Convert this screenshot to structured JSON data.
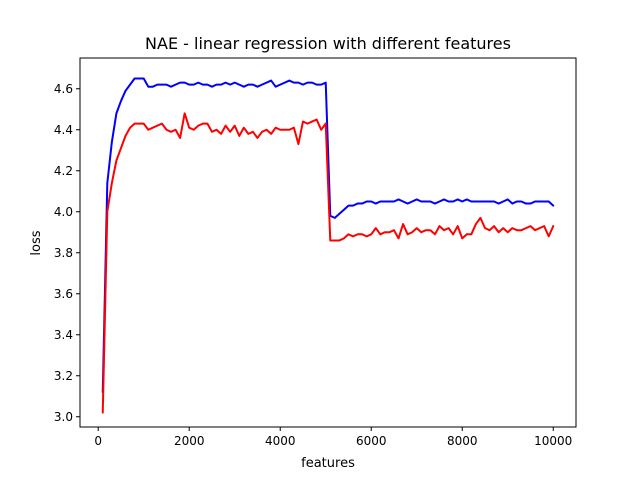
{
  "chart_data": {
    "type": "line",
    "title": "NAE - linear regression with different features",
    "xlabel": "features",
    "ylabel": "loss",
    "xlim": [
      -400,
      10500
    ],
    "ylim": [
      2.95,
      4.75
    ],
    "xticks": [
      0,
      2000,
      4000,
      6000,
      8000,
      10000
    ],
    "yticks": [
      3.0,
      3.2,
      3.4,
      3.6,
      3.8,
      4.0,
      4.2,
      4.4,
      4.6
    ],
    "xtick_labels": [
      "0",
      "2000",
      "4000",
      "6000",
      "8000",
      "10000"
    ],
    "ytick_labels": [
      "3.0",
      "3.2",
      "3.4",
      "3.6",
      "3.8",
      "4.0",
      "4.2",
      "4.4",
      "4.6"
    ],
    "grid": false,
    "x": [
      100,
      200,
      300,
      400,
      500,
      600,
      700,
      800,
      900,
      1000,
      1100,
      1200,
      1300,
      1400,
      1500,
      1600,
      1700,
      1800,
      1900,
      2000,
      2100,
      2200,
      2300,
      2400,
      2500,
      2600,
      2700,
      2800,
      2900,
      3000,
      3100,
      3200,
      3300,
      3400,
      3500,
      3600,
      3700,
      3800,
      3900,
      4000,
      4100,
      4200,
      4300,
      4400,
      4500,
      4600,
      4700,
      4800,
      4900,
      5000,
      5100,
      5200,
      5300,
      5400,
      5500,
      5600,
      5700,
      5800,
      5900,
      6000,
      6100,
      6200,
      6300,
      6400,
      6500,
      6600,
      6700,
      6800,
      6900,
      7000,
      7100,
      7200,
      7300,
      7400,
      7500,
      7600,
      7700,
      7800,
      7900,
      8000,
      8100,
      8200,
      8300,
      8400,
      8500,
      8600,
      8700,
      8800,
      8900,
      9000,
      9100,
      9200,
      9300,
      9400,
      9500,
      9600,
      9700,
      9800,
      9900,
      10000
    ],
    "series": [
      {
        "color": "#0000ff",
        "values": [
          3.12,
          4.14,
          4.34,
          4.48,
          4.54,
          4.59,
          4.62,
          4.65,
          4.65,
          4.65,
          4.61,
          4.61,
          4.62,
          4.62,
          4.62,
          4.61,
          4.62,
          4.63,
          4.63,
          4.62,
          4.62,
          4.63,
          4.62,
          4.62,
          4.61,
          4.62,
          4.62,
          4.63,
          4.62,
          4.63,
          4.62,
          4.61,
          4.62,
          4.62,
          4.61,
          4.62,
          4.63,
          4.64,
          4.61,
          4.62,
          4.63,
          4.64,
          4.63,
          4.63,
          4.62,
          4.63,
          4.63,
          4.62,
          4.62,
          4.63,
          3.98,
          3.97,
          3.99,
          4.01,
          4.03,
          4.03,
          4.04,
          4.04,
          4.05,
          4.05,
          4.04,
          4.05,
          4.05,
          4.05,
          4.05,
          4.06,
          4.05,
          4.04,
          4.05,
          4.06,
          4.05,
          4.05,
          4.05,
          4.04,
          4.05,
          4.06,
          4.05,
          4.05,
          4.06,
          4.05,
          4.06,
          4.05,
          4.05,
          4.05,
          4.05,
          4.05,
          4.05,
          4.04,
          4.05,
          4.06,
          4.04,
          4.05,
          4.05,
          4.04,
          4.04,
          4.05,
          4.05,
          4.05,
          4.05,
          4.03
        ]
      },
      {
        "color": "#ff0000",
        "values": [
          3.02,
          4.0,
          4.14,
          4.25,
          4.31,
          4.37,
          4.41,
          4.43,
          4.43,
          4.43,
          4.4,
          4.41,
          4.42,
          4.43,
          4.4,
          4.39,
          4.4,
          4.36,
          4.48,
          4.41,
          4.4,
          4.42,
          4.43,
          4.43,
          4.39,
          4.4,
          4.38,
          4.42,
          4.39,
          4.42,
          4.37,
          4.41,
          4.38,
          4.39,
          4.36,
          4.39,
          4.4,
          4.38,
          4.41,
          4.4,
          4.4,
          4.4,
          4.41,
          4.33,
          4.44,
          4.43,
          4.44,
          4.45,
          4.4,
          4.43,
          3.86,
          3.86,
          3.86,
          3.87,
          3.89,
          3.88,
          3.89,
          3.89,
          3.88,
          3.89,
          3.92,
          3.89,
          3.9,
          3.9,
          3.91,
          3.87,
          3.94,
          3.89,
          3.9,
          3.92,
          3.9,
          3.91,
          3.91,
          3.89,
          3.93,
          3.91,
          3.92,
          3.89,
          3.93,
          3.87,
          3.89,
          3.89,
          3.94,
          3.97,
          3.92,
          3.91,
          3.93,
          3.9,
          3.92,
          3.9,
          3.92,
          3.91,
          3.91,
          3.92,
          3.93,
          3.91,
          3.92,
          3.93,
          3.88,
          3.93
        ]
      }
    ]
  }
}
